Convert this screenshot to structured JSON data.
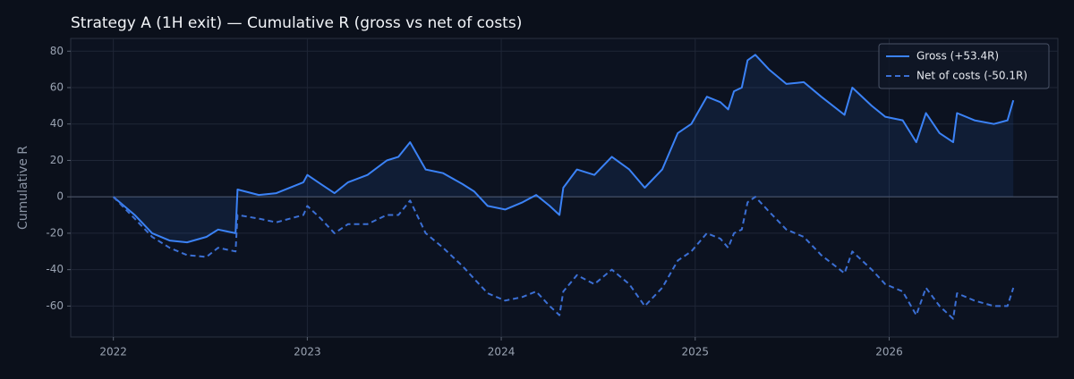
{
  "chart_data": {
    "type": "line",
    "title": "Strategy A (1H exit) — Cumulative R (gross vs net of costs)",
    "y_label": "Cumulative R",
    "x": [
      2022.0,
      2022.11,
      2022.2,
      2022.29,
      2022.38,
      2022.48,
      2022.54,
      2022.63,
      2022.64,
      2022.75,
      2022.84,
      2022.98,
      2023.0,
      2023.07,
      2023.14,
      2023.21,
      2023.31,
      2023.41,
      2023.47,
      2023.53,
      2023.61,
      2023.7,
      2023.8,
      2023.86,
      2023.93,
      2024.02,
      2024.11,
      2024.18,
      2024.25,
      2024.3,
      2024.32,
      2024.39,
      2024.48,
      2024.57,
      2024.66,
      2024.74,
      2024.83,
      2024.91,
      2024.98,
      2025.06,
      2025.13,
      2025.17,
      2025.2,
      2025.24,
      2025.27,
      2025.31,
      2025.38,
      2025.47,
      2025.56,
      2025.65,
      2025.77,
      2025.81,
      2025.91,
      2025.98,
      2026.07,
      2026.14,
      2026.19,
      2026.26,
      2026.33,
      2026.35,
      2026.44,
      2026.54,
      2026.61,
      2026.64
    ],
    "series": [
      {
        "name": "Gross (+53.4R)",
        "color": "#3b82f6",
        "dash": false,
        "fill": true,
        "values": [
          0,
          -10,
          -20,
          -24,
          -25,
          -22,
          -18,
          -20,
          4,
          1,
          2,
          8,
          12,
          7,
          2,
          8,
          12,
          20,
          22,
          30,
          15,
          13,
          7,
          3,
          -5,
          -7,
          -3,
          1,
          -5,
          -10,
          5,
          15,
          12,
          22,
          15,
          5,
          15,
          35,
          40,
          55,
          52,
          48,
          58,
          60,
          75,
          78,
          70,
          62,
          63,
          55,
          45,
          60,
          50,
          44,
          42,
          30,
          46,
          35,
          30,
          46,
          42,
          40,
          42,
          53
        ]
      },
      {
        "name": "Net of costs (-50.1R)",
        "color": "#3b6fd4",
        "dash": true,
        "fill": false,
        "values": [
          0,
          -12,
          -22,
          -28,
          -32,
          -33,
          -28,
          -30,
          -10,
          -12,
          -14,
          -10,
          -5,
          -12,
          -20,
          -15,
          -15,
          -10,
          -10,
          -2,
          -20,
          -28,
          -38,
          -45,
          -53,
          -57,
          -55,
          -52,
          -60,
          -65,
          -52,
          -43,
          -48,
          -40,
          -48,
          -60,
          -50,
          -35,
          -30,
          -20,
          -23,
          -28,
          -20,
          -18,
          -3,
          0,
          -8,
          -18,
          -22,
          -32,
          -42,
          -30,
          -40,
          -48,
          -52,
          -65,
          -50,
          -60,
          -67,
          -53,
          -57,
          -60,
          -60,
          -50
        ]
      }
    ],
    "xlim": [
      2021.78,
      2026.87
    ],
    "xticks": [
      2022,
      2023,
      2024,
      2025,
      2026
    ],
    "ylim": [
      -77,
      87
    ],
    "yticks": [
      -60,
      -40,
      -20,
      0,
      20,
      40,
      60,
      80
    ],
    "grid": true,
    "legend": "upper right"
  }
}
